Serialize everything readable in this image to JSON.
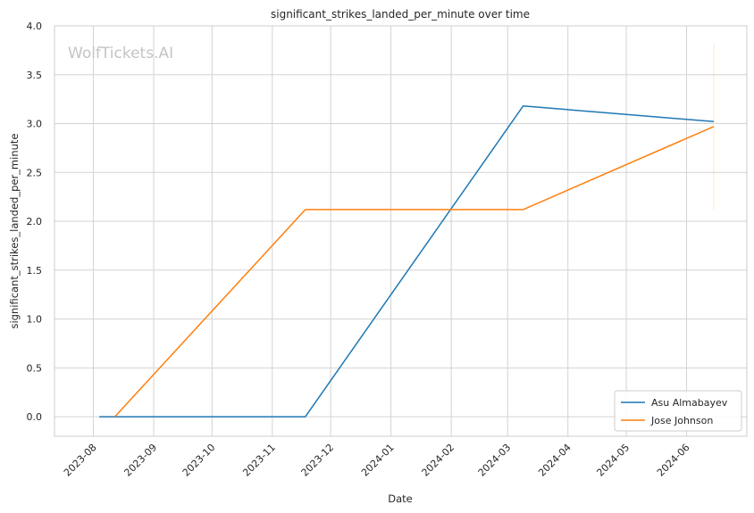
{
  "watermark": "WolfTickets.AI",
  "chart_data": {
    "type": "line",
    "title": "significant_strikes_landed_per_minute over time",
    "xlabel": "Date",
    "ylabel": "significant_strikes_landed_per_minute",
    "x_ticks": [
      "2023-08",
      "2023-09",
      "2023-10",
      "2023-11",
      "2023-12",
      "2024-01",
      "2024-02",
      "2024-03",
      "2024-04",
      "2024-05",
      "2024-06"
    ],
    "y_ticks": [
      "0.0",
      "0.5",
      "1.0",
      "1.5",
      "2.0",
      "2.5",
      "3.0",
      "3.5",
      "4.0"
    ],
    "ylim": [
      -0.2,
      4.0
    ],
    "xlim": [
      "2023-07-12",
      "2024-07-02"
    ],
    "grid": true,
    "legend_position": "lower-right",
    "series": [
      {
        "name": "Asu Almabayev",
        "color": "#1f77b4",
        "points": [
          {
            "x": "2023-08-04",
            "y": 0.0
          },
          {
            "x": "2023-11-18",
            "y": 0.0
          },
          {
            "x": "2024-03-09",
            "y": 3.18
          },
          {
            "x": "2024-06-15",
            "y": 3.02
          }
        ]
      },
      {
        "name": "Jose Johnson",
        "color": "#ff7f0e",
        "points": [
          {
            "x": "2023-08-12",
            "y": 0.0
          },
          {
            "x": "2023-11-18",
            "y": 2.12
          },
          {
            "x": "2024-03-09",
            "y": 2.12
          },
          {
            "x": "2024-06-15",
            "y": 2.97
          }
        ]
      }
    ],
    "error_bar": {
      "x": "2024-06-15",
      "y_low": 2.12,
      "y_high": 3.82,
      "color": "#ff7f0e"
    }
  }
}
